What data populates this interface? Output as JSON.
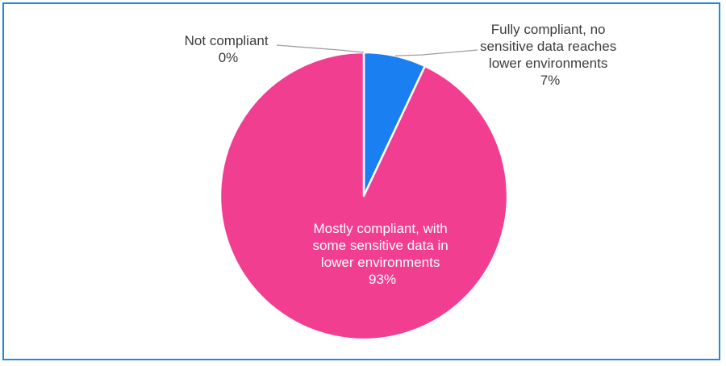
{
  "chart_data": {
    "type": "pie",
    "start_angle_deg": 0,
    "direction": "clockwise",
    "slices": [
      {
        "label_lines": [
          "Fully compliant, no",
          "sensitive data reaches",
          "lower environments"
        ],
        "value": 7,
        "value_label": "7%",
        "color": "#1a7ff0",
        "label_position": "outside"
      },
      {
        "label_lines": [
          "Mostly compliant, with",
          "some sensitive data in",
          "lower environments"
        ],
        "value": 93,
        "value_label": "93%",
        "color": "#f23e91",
        "label_position": "inside"
      },
      {
        "label_lines": [
          "Not compliant"
        ],
        "value": 0,
        "value_label": "0%",
        "color": "#f4b400",
        "label_position": "outside"
      }
    ]
  },
  "colors": {
    "border": "#1f8ae0",
    "leader_line": "#9e9e9e",
    "outside_text": "#3c3c3c",
    "inside_text": "#ffffff"
  }
}
